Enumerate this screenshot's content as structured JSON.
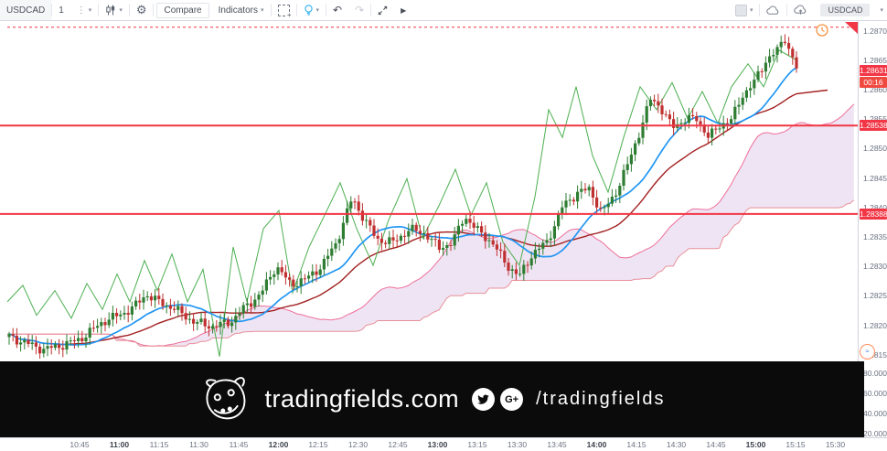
{
  "toolbar": {
    "symbol": "USDCAD",
    "interval": "1",
    "compare_label": "Compare",
    "indicators_label": "Indicators",
    "layout_symbol": "USDCAD"
  },
  "banner": {
    "site": "tradingfields.com",
    "handle": "/tradingfields",
    "gplus_label": "G+"
  },
  "chart_data": {
    "type": "candlestick",
    "symbol": "USDCAD",
    "interval": "1 minute",
    "legend_position": "none",
    "grid": false,
    "last_price": "1.28631",
    "countdown": "00:16",
    "alert_line_price": 1.28705,
    "levels": [
      {
        "price": 1.28538,
        "label": "1.28538"
      },
      {
        "price": 1.28388,
        "label": "1.28388"
      }
    ],
    "y_axis": {
      "ticks": [
        1.287,
        1.2865,
        1.286,
        1.2855,
        1.285,
        1.2845,
        1.284,
        1.2835,
        1.283,
        1.2825,
        1.282,
        1.2815
      ],
      "range": [
        1.2814,
        1.2871
      ],
      "sub_pane_ticks": [
        "80.0000",
        "60.0000",
        "40.0000",
        "20.0000"
      ]
    },
    "x_axis": {
      "labels": [
        "10:45",
        "11:00",
        "11:15",
        "11:30",
        "11:45",
        "12:00",
        "12:15",
        "12:30",
        "12:45",
        "13:00",
        "13:15",
        "13:30",
        "13:45",
        "14:00",
        "14:15",
        "14:30",
        "14:45",
        "15:00",
        "15:15",
        "15:30"
      ],
      "bold_labels": [
        "11:00",
        "12:00",
        "13:00",
        "14:00",
        "15:00"
      ]
    },
    "price_path": [
      [
        10,
        1.2818
      ],
      [
        30,
        1.28168
      ],
      [
        48,
        1.28158
      ],
      [
        70,
        1.28166
      ],
      [
        88,
        1.28176
      ],
      [
        100,
        1.2819
      ],
      [
        112,
        1.28205
      ],
      [
        128,
        1.28215
      ],
      [
        145,
        1.28228
      ],
      [
        160,
        1.28252
      ],
      [
        172,
        1.2824
      ],
      [
        190,
        1.28228
      ],
      [
        212,
        1.28205
      ],
      [
        232,
        1.28197
      ],
      [
        252,
        1.28205
      ],
      [
        268,
        1.2823
      ],
      [
        285,
        1.28252
      ],
      [
        302,
        1.283
      ],
      [
        318,
        1.28268
      ],
      [
        335,
        1.28278
      ],
      [
        352,
        1.283
      ],
      [
        368,
        1.2834
      ],
      [
        385,
        1.28415
      ],
      [
        398,
        1.2838
      ],
      [
        412,
        1.28345
      ],
      [
        430,
        1.2834
      ],
      [
        448,
        1.28362
      ],
      [
        465,
        1.28355
      ],
      [
        480,
        1.2833
      ],
      [
        495,
        1.2834
      ],
      [
        508,
        1.28385
      ],
      [
        522,
        1.2836
      ],
      [
        538,
        1.2834
      ],
      [
        555,
        1.283
      ],
      [
        568,
        1.28282
      ],
      [
        582,
        1.2832
      ],
      [
        598,
        1.2834
      ],
      [
        615,
        1.284
      ],
      [
        632,
        1.28425
      ],
      [
        645,
        1.2843
      ],
      [
        658,
        1.2839
      ],
      [
        672,
        1.2842
      ],
      [
        686,
        1.2847
      ],
      [
        700,
        1.2853
      ],
      [
        712,
        1.28585
      ],
      [
        722,
        1.2857
      ],
      [
        735,
        1.28535
      ],
      [
        748,
        1.28548
      ],
      [
        762,
        1.2855
      ],
      [
        775,
        1.28518
      ],
      [
        788,
        1.2854
      ],
      [
        800,
        1.28548
      ],
      [
        812,
        1.2859
      ],
      [
        825,
        1.28612
      ],
      [
        838,
        1.2865
      ],
      [
        850,
        1.28665
      ],
      [
        858,
        1.28688
      ],
      [
        865,
        1.2866
      ],
      [
        872,
        1.28631
      ]
    ],
    "green_line": [
      [
        8,
        1.28239
      ],
      [
        25,
        1.28267
      ],
      [
        40,
        1.28216
      ],
      [
        60,
        1.28258
      ],
      [
        78,
        1.28211
      ],
      [
        95,
        1.2827
      ],
      [
        112,
        1.28226
      ],
      [
        128,
        1.28286
      ],
      [
        142,
        1.28239
      ],
      [
        158,
        1.28309
      ],
      [
        172,
        1.28258
      ],
      [
        188,
        1.2832
      ],
      [
        205,
        1.28239
      ],
      [
        222,
        1.28294
      ],
      [
        240,
        1.28146
      ],
      [
        255,
        1.28332
      ],
      [
        270,
        1.28239
      ],
      [
        288,
        1.28363
      ],
      [
        305,
        1.28394
      ],
      [
        320,
        1.28254
      ],
      [
        338,
        1.28332
      ],
      [
        355,
        1.28386
      ],
      [
        372,
        1.28441
      ],
      [
        390,
        1.28363
      ],
      [
        408,
        1.28301
      ],
      [
        425,
        1.28378
      ],
      [
        445,
        1.28448
      ],
      [
        462,
        1.28347
      ],
      [
        480,
        1.28402
      ],
      [
        498,
        1.28464
      ],
      [
        515,
        1.28386
      ],
      [
        532,
        1.28441
      ],
      [
        550,
        1.2834
      ],
      [
        568,
        1.28301
      ],
      [
        585,
        1.28417
      ],
      [
        600,
        1.28565
      ],
      [
        615,
        1.28518
      ],
      [
        630,
        1.28604
      ],
      [
        648,
        1.28487
      ],
      [
        665,
        1.28425
      ],
      [
        682,
        1.28518
      ],
      [
        700,
        1.28604
      ],
      [
        718,
        1.28565
      ],
      [
        735,
        1.28611
      ],
      [
        752,
        1.2855
      ],
      [
        768,
        1.28596
      ],
      [
        785,
        1.28542
      ],
      [
        800,
        1.28604
      ],
      [
        818,
        1.28643
      ],
      [
        835,
        1.28604
      ],
      [
        852,
        1.28666
      ],
      [
        870,
        1.2865
      ]
    ],
    "colors": {
      "up": "#2e7d32",
      "down": "#c03030",
      "blue_ma": "#2196f3",
      "dark_ma": "#a32020",
      "green_line": "#4caf50",
      "cloud_fill": "rgba(130,50,160,0.13)",
      "cloud_edge_top": "#ef6f9a",
      "cloud_edge_bottom": "#e8909a",
      "level_red": "#f23645",
      "badge_red": "#f23645"
    }
  }
}
